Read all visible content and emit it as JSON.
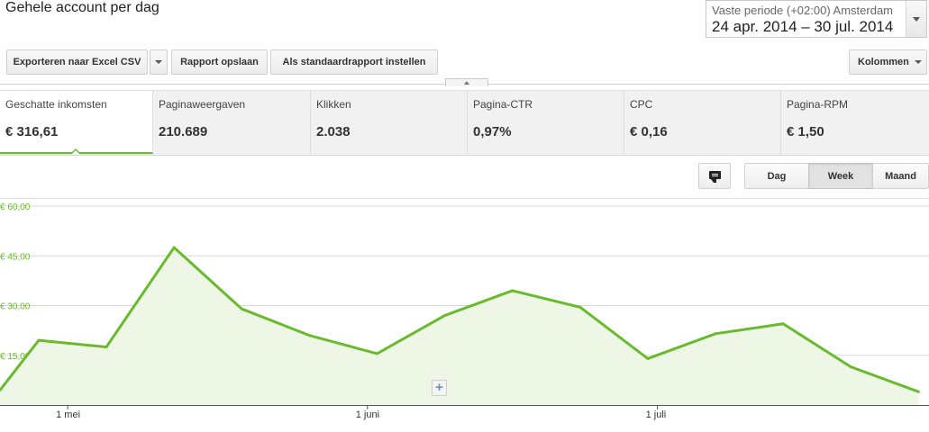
{
  "header": {
    "title": "Gehele account per dag",
    "date_caption": "Vaste periode (+02:00) Amsterdam",
    "date_range": "24 apr. 2014 – 30 jul. 2014"
  },
  "toolbar": {
    "export_label": "Exporteren naar Excel CSV",
    "save_report_label": "Rapport opslaan",
    "default_report_label": "Als standaardrapport instellen",
    "columns_label": "Kolommen"
  },
  "metrics": [
    {
      "label": "Geschatte inkomsten",
      "value": "€ 316,61"
    },
    {
      "label": "Paginaweergaven",
      "value": "210.689"
    },
    {
      "label": "Klikken",
      "value": "2.038"
    },
    {
      "label": "Pagina-CTR",
      "value": "0,97%"
    },
    {
      "label": "CPC",
      "value": "€ 0,16"
    },
    {
      "label": "Pagina-RPM",
      "value": "€ 1,50"
    }
  ],
  "granularity": {
    "options": [
      "Dag",
      "Week",
      "Maand"
    ],
    "selected": "Week"
  },
  "colors": {
    "accent": "#6aba2f",
    "area_fill": "#eef7e6",
    "grid": "#d7d7d7"
  },
  "chart_data": {
    "type": "area",
    "series": [
      {
        "values": [
          4.5,
          19.5,
          17.5,
          47.5,
          29,
          21,
          15.5,
          27,
          34.5,
          29.5,
          14,
          21.5,
          24.5,
          11.5,
          4
        ]
      }
    ],
    "x_positions_days": [
      0,
      4,
      11,
      18,
      25,
      32,
      39,
      46,
      53,
      60,
      67,
      74,
      81,
      88,
      95
    ],
    "x_ticks": [
      {
        "label": "1 mei",
        "day": 7
      },
      {
        "label": "1 juni",
        "day": 38
      },
      {
        "label": "1 juli",
        "day": 68
      }
    ],
    "y_ticks": [
      {
        "label": "€ 15,00",
        "value": 15
      },
      {
        "label": "€ 30,00",
        "value": 30
      },
      {
        "label": "€ 45,00",
        "value": 45
      },
      {
        "label": "€ 60,00",
        "value": 60
      }
    ],
    "ylim": [
      0,
      60
    ],
    "grid": true
  }
}
